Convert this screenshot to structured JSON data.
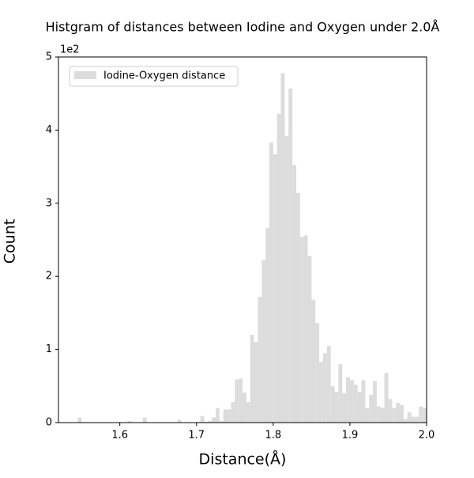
{
  "chart_data": {
    "type": "histogram",
    "title": "Histgram of distances between Iodine and Oxygen under 2.0Å",
    "x_label": "Distance(Å)",
    "y_label": "Count",
    "y_offset_label": "1e2",
    "series": [
      {
        "name": "Iodine-Oxygen distance",
        "color": "#dcdcdc",
        "bins": [
          1.52,
          1.525,
          1.53,
          1.535,
          1.54,
          1.545,
          1.55,
          1.555,
          1.56,
          1.565,
          1.57,
          1.575,
          1.58,
          1.585,
          1.59,
          1.595,
          1.6,
          1.605,
          1.61,
          1.615,
          1.62,
          1.625,
          1.63,
          1.635,
          1.64,
          1.645,
          1.65,
          1.655,
          1.66,
          1.665,
          1.67,
          1.675,
          1.68,
          1.685,
          1.69,
          1.695,
          1.7,
          1.705,
          1.71,
          1.715,
          1.72,
          1.725,
          1.73,
          1.735,
          1.74,
          1.745,
          1.75,
          1.755,
          1.76,
          1.765,
          1.77,
          1.775,
          1.78,
          1.785,
          1.79,
          1.795,
          1.8,
          1.805,
          1.81,
          1.815,
          1.82,
          1.825,
          1.83,
          1.835,
          1.84,
          1.845,
          1.85,
          1.855,
          1.86,
          1.865,
          1.87,
          1.875,
          1.88,
          1.885,
          1.89,
          1.895,
          1.9,
          1.905,
          1.91,
          1.915,
          1.92,
          1.925,
          1.93,
          1.935,
          1.94,
          1.945,
          1.95,
          1.955,
          1.96,
          1.965,
          1.97,
          1.975,
          1.98,
          1.985,
          1.99,
          1.995,
          2.0
        ],
        "values": [
          0,
          0,
          0,
          0,
          0,
          0.07,
          0,
          0,
          0,
          0,
          0,
          0,
          0,
          0,
          0,
          0,
          0,
          0,
          0.02,
          0,
          0,
          0,
          0.07,
          0,
          0,
          0,
          0,
          0,
          0,
          0,
          0,
          0.04,
          0,
          0,
          0,
          0,
          0.01,
          0.09,
          0.01,
          0.02,
          0.07,
          0.2,
          0.02,
          0.18,
          0.18,
          0.28,
          0.59,
          0.6,
          0.41,
          0.28,
          1.2,
          1.1,
          1.72,
          2.22,
          2.66,
          3.83,
          3.67,
          4.22,
          4.78,
          3.92,
          4.57,
          3.52,
          3.14,
          2.54,
          2.56,
          2.28,
          1.68,
          1.36,
          0.83,
          0.95,
          1.05,
          0.5,
          0.42,
          0.8,
          0.4,
          0.62,
          0.58,
          0.52,
          0.42,
          0.58,
          0.2,
          0.38,
          0.57,
          0.22,
          0.2,
          0.68,
          0.32,
          0.2,
          0.27,
          0.24,
          0.05,
          0.14,
          0.08,
          0.08,
          0.22,
          0.2
        ]
      }
    ],
    "xlim": [
      1.52,
      2
    ],
    "ylim": [
      0,
      5
    ],
    "xticks": [
      1.6,
      1.7,
      1.8,
      1.9,
      {
        "value": 2,
        "label": "2.0"
      }
    ],
    "yticks": [
      0,
      1,
      2,
      3,
      4,
      5
    ],
    "legend": "upper left"
  }
}
